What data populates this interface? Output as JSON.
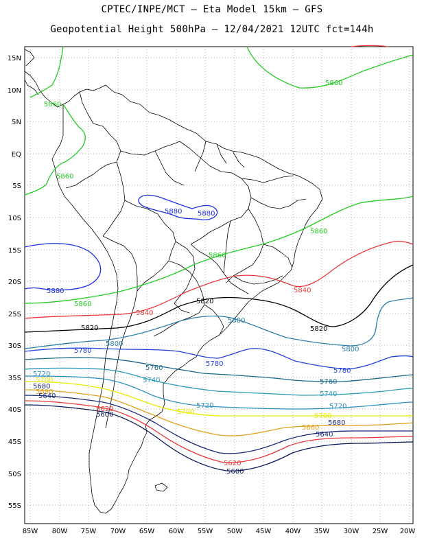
{
  "title_line1": "CPTEC/INPE/MCT  –   Eta Model 15km  –  GFS",
  "title_line2": "Geopotential Height 500hPa  –  12/04/2021 12UTC fct=144h",
  "colors": {
    "c5880": "#1f2fe0",
    "c5860": "#22cc22",
    "c5840": "#e83a3a",
    "c5820": "#000000",
    "c5800": "#2a7fa8",
    "c5780": "#1f3fd8",
    "c5760": "#1c6a8a",
    "c5740": "#2a9ab8",
    "c5720": "#2d8fbf",
    "c5700": "#e8e800",
    "c5680": "#e0a020",
    "c5640": "#1a2a7a",
    "c5600": "#0a1a5a",
    "land": "#000000",
    "grid": "#999999"
  },
  "y_ticks": [
    "15N",
    "10N",
    "5N",
    "EQ",
    "5S",
    "10S",
    "15S",
    "20S",
    "25S",
    "30S",
    "35S",
    "40S",
    "45S",
    "50S",
    "55S"
  ],
  "x_ticks": [
    "85W",
    "80W",
    "75W",
    "70W",
    "65W",
    "60W",
    "55W",
    "50W",
    "45W",
    "40W",
    "35W",
    "30W",
    "25W",
    "20W"
  ],
  "contour_labels": [
    {
      "text": "5860",
      "color_key": "c5860"
    },
    {
      "text": "5860",
      "color_key": "c5860"
    },
    {
      "text": "5860",
      "color_key": "c5860"
    },
    {
      "text": "5860",
      "color_key": "c5860"
    },
    {
      "text": "5860",
      "color_key": "c5860"
    },
    {
      "text": "5860",
      "color_key": "c5860"
    },
    {
      "text": "5880",
      "color_key": "c5880"
    },
    {
      "text": "5880",
      "color_key": "c5880"
    },
    {
      "text": "5880",
      "color_key": "c5880"
    },
    {
      "text": "5840",
      "color_key": "c5840"
    },
    {
      "text": "5840",
      "color_key": "c5840"
    },
    {
      "text": "5820",
      "color_key": "c5820"
    },
    {
      "text": "5820",
      "color_key": "c5820"
    },
    {
      "text": "5820",
      "color_key": "c5820"
    },
    {
      "text": "5800",
      "color_key": "c5800"
    },
    {
      "text": "5800",
      "color_key": "c5800"
    },
    {
      "text": "5800",
      "color_key": "c5800"
    },
    {
      "text": "5780",
      "color_key": "c5780"
    },
    {
      "text": "5780",
      "color_key": "c5780"
    },
    {
      "text": "5780",
      "color_key": "c5780"
    },
    {
      "text": "5760",
      "color_key": "c5760"
    },
    {
      "text": "5760",
      "color_key": "c5760"
    },
    {
      "text": "5740",
      "color_key": "c5740"
    },
    {
      "text": "5740",
      "color_key": "c5740"
    },
    {
      "text": "5720",
      "color_key": "c5720"
    },
    {
      "text": "5720",
      "color_key": "c5720"
    },
    {
      "text": "5720",
      "color_key": "c5720"
    },
    {
      "text": "5700",
      "color_key": "c5700"
    },
    {
      "text": "5700",
      "color_key": "c5700"
    },
    {
      "text": "5700",
      "color_key": "c5700"
    },
    {
      "text": "5680",
      "color_key": "c5680"
    },
    {
      "text": "5680",
      "color_key": "c5680"
    },
    {
      "text": "5680",
      "color_key": "c5680"
    },
    {
      "text": "5660",
      "color_key": "c5680"
    },
    {
      "text": "5640",
      "color_key": "c5640"
    },
    {
      "text": "5640",
      "color_key": "c5640"
    },
    {
      "text": "5620",
      "color_key": "c5840"
    },
    {
      "text": "5620",
      "color_key": "c5840"
    },
    {
      "text": "5600",
      "color_key": "c5600"
    },
    {
      "text": "5600",
      "color_key": "c5600"
    }
  ]
}
